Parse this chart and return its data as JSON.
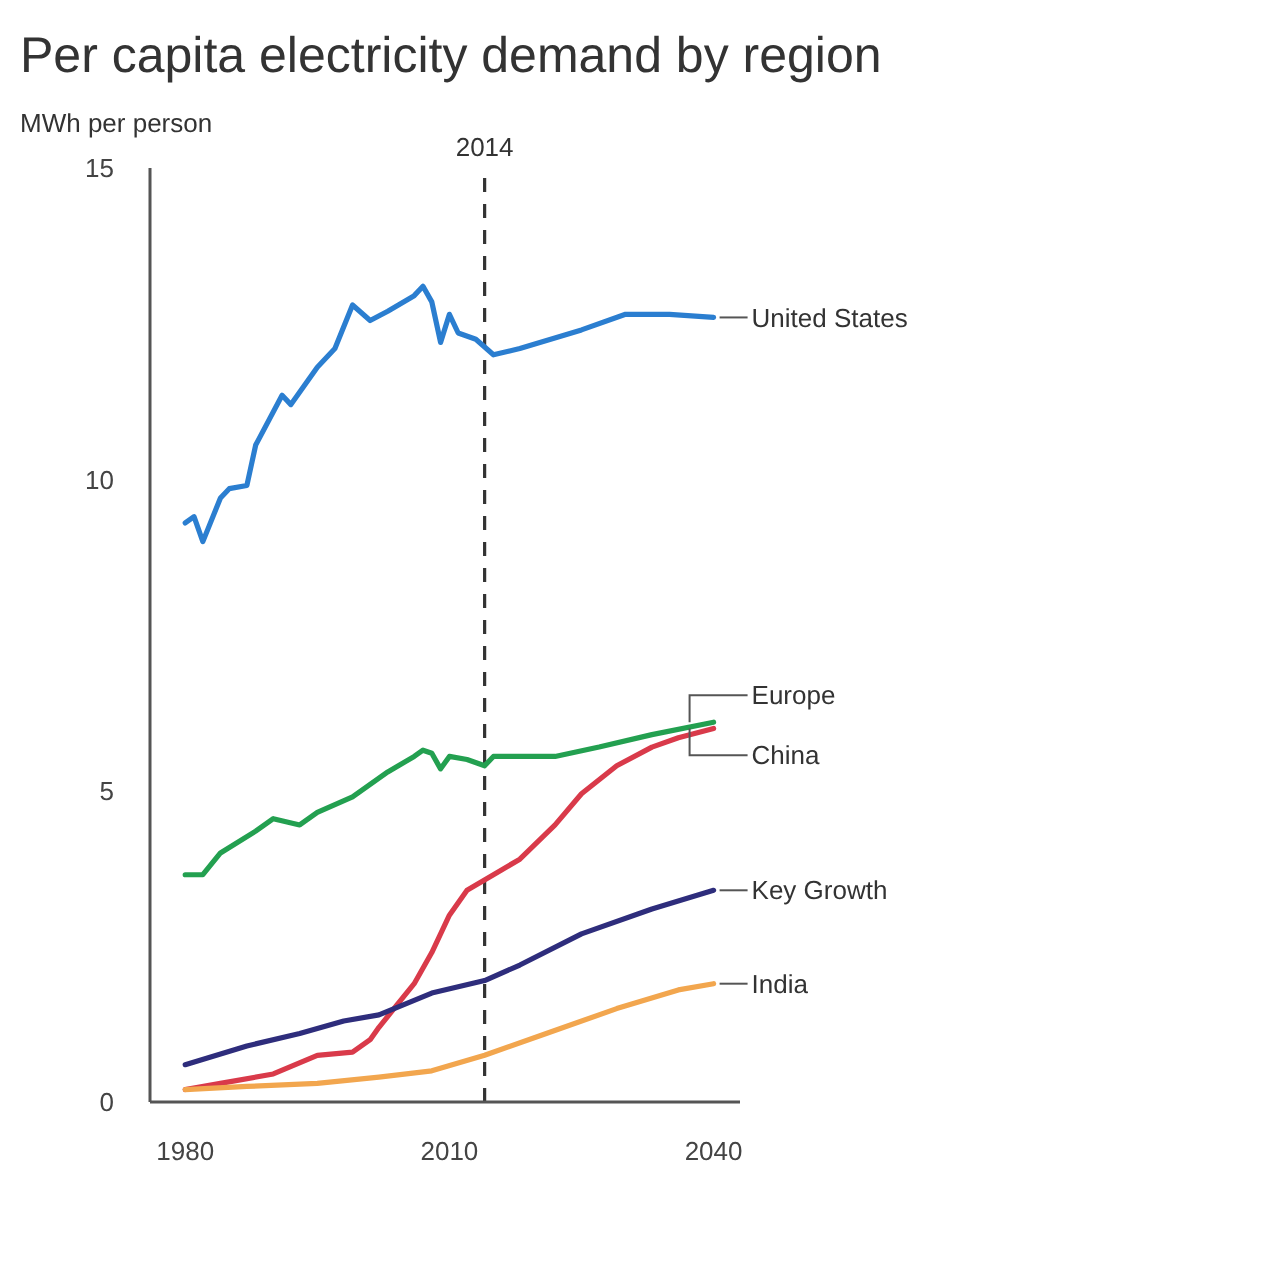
{
  "chart_data": {
    "type": "line",
    "title": "Per capita electricity demand by region",
    "ylabel": "MWh per person",
    "xlim": [
      1976,
      2043
    ],
    "xticks": [
      1980,
      2010,
      2040
    ],
    "ylim": [
      0,
      15
    ],
    "yticks": [
      0,
      5,
      10,
      15
    ],
    "series": [
      {
        "name": "United States",
        "color": "#2b7ed0",
        "x": [
          1980,
          1981,
          1982,
          1984,
          1985,
          1987,
          1988,
          1991,
          1992,
          1995,
          1997,
          1999,
          2001,
          2003,
          2006,
          2007,
          2008,
          2009,
          2010,
          2011,
          2013,
          2015,
          2018,
          2025,
          2030,
          2035,
          2040
        ],
        "values": [
          9.3,
          9.4,
          9.0,
          9.7,
          9.85,
          9.9,
          10.55,
          11.35,
          11.2,
          11.8,
          12.1,
          12.8,
          12.55,
          12.7,
          12.95,
          13.1,
          12.85,
          12.2,
          12.65,
          12.35,
          12.25,
          12.0,
          12.1,
          12.4,
          12.65,
          12.65,
          12.6
        ]
      },
      {
        "name": "Europe",
        "color": "#23a050",
        "x": [
          1980,
          1982,
          1984,
          1988,
          1990,
          1993,
          1995,
          1999,
          2003,
          2006,
          2007,
          2008,
          2009,
          2010,
          2012,
          2014,
          2015,
          2022,
          2027,
          2033,
          2040
        ],
        "values": [
          3.65,
          3.65,
          4.0,
          4.35,
          4.55,
          4.45,
          4.65,
          4.9,
          5.3,
          5.55,
          5.65,
          5.6,
          5.35,
          5.55,
          5.5,
          5.4,
          5.55,
          5.55,
          5.7,
          5.9,
          6.1
        ]
      },
      {
        "name": "China",
        "color": "#d93a4a",
        "x": [
          1980,
          1984,
          1990,
          1995,
          1999,
          2001,
          2002,
          2004,
          2006,
          2008,
          2010,
          2012,
          2015,
          2018,
          2022,
          2025,
          2029,
          2033,
          2036,
          2040
        ],
        "values": [
          0.2,
          0.3,
          0.45,
          0.75,
          0.8,
          1.0,
          1.2,
          1.55,
          1.9,
          2.4,
          3.0,
          3.4,
          3.65,
          3.9,
          4.45,
          4.95,
          5.4,
          5.7,
          5.85,
          6.0
        ]
      },
      {
        "name": "Key Growth",
        "color": "#2e2d7c",
        "x": [
          1980,
          1987,
          1993,
          1998,
          2002,
          2008,
          2014,
          2018,
          2025,
          2033,
          2040
        ],
        "values": [
          0.6,
          0.9,
          1.1,
          1.3,
          1.4,
          1.75,
          1.95,
          2.2,
          2.7,
          3.1,
          3.4
        ]
      },
      {
        "name": "India",
        "color": "#f2a64e",
        "x": [
          1980,
          1987,
          1995,
          2002,
          2008,
          2014,
          2021,
          2029,
          2036,
          2040
        ],
        "values": [
          0.2,
          0.25,
          0.3,
          0.4,
          0.5,
          0.75,
          1.1,
          1.5,
          1.8,
          1.9
        ]
      }
    ],
    "ref_lines": [
      {
        "axis": "x",
        "value": 2014,
        "label": "2014",
        "color": "#333333",
        "line_style": "dashed"
      }
    ]
  }
}
